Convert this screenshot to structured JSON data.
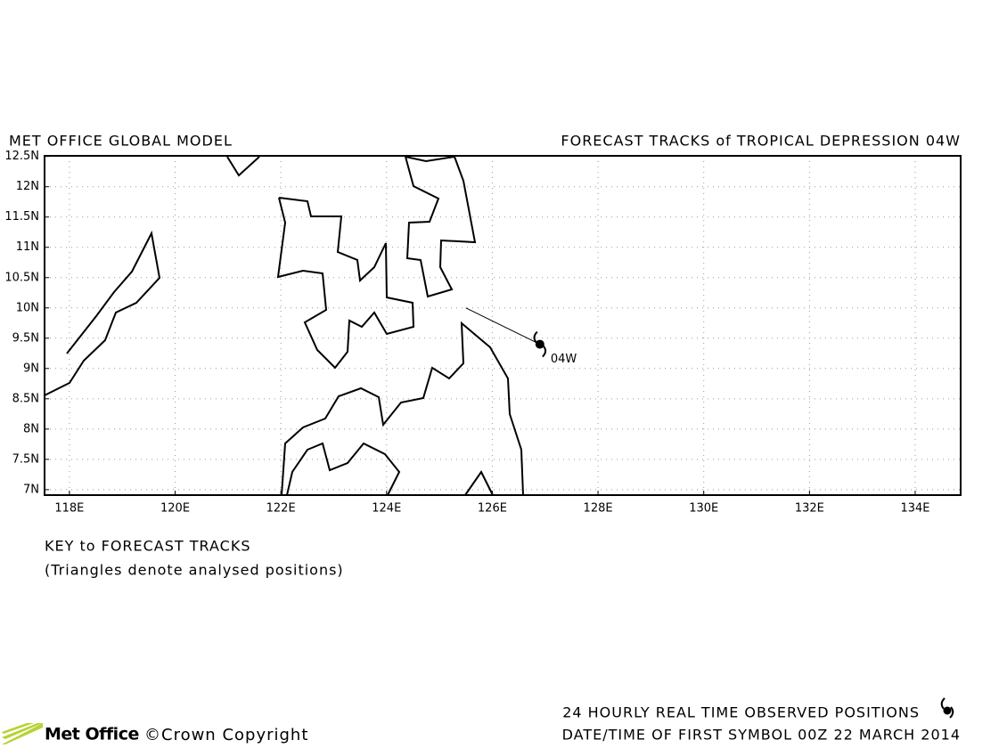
{
  "map": {
    "title_left": "MET OFFICE GLOBAL MODEL",
    "title_right": "FORECAST TRACKS of TROPICAL DEPRESSION 04W",
    "xlim": [
      117.53,
      134.86
    ],
    "ylim": [
      6.91,
      12.51
    ],
    "xticks": [
      {
        "value": 118,
        "label": "118E"
      },
      {
        "value": 120,
        "label": "120E"
      },
      {
        "value": 122,
        "label": "122E"
      },
      {
        "value": 124,
        "label": "124E"
      },
      {
        "value": 126,
        "label": "126E"
      },
      {
        "value": 128,
        "label": "128E"
      },
      {
        "value": 130,
        "label": "130E"
      },
      {
        "value": 132,
        "label": "132E"
      },
      {
        "value": 134,
        "label": "134E"
      }
    ],
    "yticks": [
      {
        "value": 7,
        "label": "7N"
      },
      {
        "value": 7.5,
        "label": "7.5N"
      },
      {
        "value": 8,
        "label": "8N"
      },
      {
        "value": 8.5,
        "label": "8.5N"
      },
      {
        "value": 9,
        "label": "9N"
      },
      {
        "value": 9.5,
        "label": "9.5N"
      },
      {
        "value": 10,
        "label": "10N"
      },
      {
        "value": 10.5,
        "label": "10.5N"
      },
      {
        "value": 11,
        "label": "11N"
      },
      {
        "value": 11.5,
        "label": "11.5N"
      },
      {
        "value": 12,
        "label": "12N"
      },
      {
        "value": 12.5,
        "label": "12.5N"
      }
    ],
    "track": {
      "lon": [
        125.5,
        126.9
      ],
      "lat": [
        10.0,
        9.4
      ]
    },
    "storm": {
      "label": "04W",
      "lon": 126.9,
      "lat": 9.4
    },
    "key_title": "KEY to FORECAST TRACKS",
    "key_note": "(Triangles denote analysed positions)",
    "footer": {
      "brand": "Met Office",
      "copyright": "©Crown Copyright",
      "observed": "24 HOURLY REAL TIME OBSERVED POSITIONS",
      "date": "DATE/TIME OF FIRST SYMBOL 00Z 22 MARCH 2014"
    }
  }
}
